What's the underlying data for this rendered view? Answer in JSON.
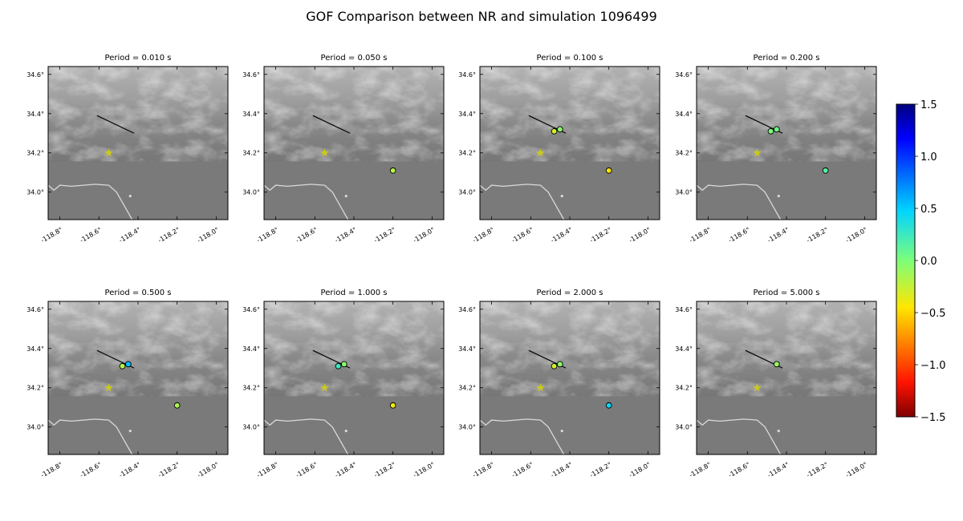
{
  "title": "GOF Comparison between NR and simulation 1096499",
  "colors": {
    "terrain_base": "#7a7a7a",
    "fault_line": "#000000",
    "epicenter_star": "#c9c91a",
    "coastline": "#d9d9d9"
  },
  "icons": {
    "epicenter": "star-icon",
    "station": "circle-marker"
  },
  "chart_data": {
    "type": "scatter",
    "subtype": "small-multiple maps",
    "x_ticks": [
      "-118.8°",
      "-118.6°",
      "-118.4°",
      "-118.2°",
      "-118.0°"
    ],
    "y_ticks": [
      "34.0°",
      "34.2°",
      "34.4°",
      "34.6°"
    ],
    "x_tick_values": [
      -118.8,
      -118.6,
      -118.4,
      -118.2,
      -118.0
    ],
    "y_tick_values": [
      34.0,
      34.2,
      34.4,
      34.6
    ],
    "xlim": [
      -118.86,
      -117.94
    ],
    "ylim": [
      33.86,
      34.64
    ],
    "epicenter": {
      "lon": -118.55,
      "lat": 34.2
    },
    "fault_trace": [
      {
        "lon": -118.61,
        "lat": 34.39
      },
      {
        "lon": -118.42,
        "lat": 34.3
      }
    ],
    "colorbar": {
      "ticks": [
        "1.5",
        "1.0",
        "0.5",
        "0.0",
        "−0.5",
        "−1.0",
        "−1.5"
      ],
      "range": [
        -1.5,
        1.5
      ],
      "colormap": "jet (reversed)"
    },
    "panels": [
      {
        "title": "Period = 0.010 s",
        "stations": []
      },
      {
        "title": "Period = 0.050 s",
        "stations": [
          {
            "lon": -118.2,
            "lat": 34.11,
            "value": -0.2
          }
        ]
      },
      {
        "title": "Period = 0.100 s",
        "stations": [
          {
            "lon": -118.48,
            "lat": 34.31,
            "value": -0.3
          },
          {
            "lon": -118.45,
            "lat": 34.32,
            "value": -0.05
          },
          {
            "lon": -118.2,
            "lat": 34.11,
            "value": -0.45
          }
        ]
      },
      {
        "title": "Period = 0.200 s",
        "stations": [
          {
            "lon": -118.48,
            "lat": 34.31,
            "value": 0.0
          },
          {
            "lon": -118.45,
            "lat": 34.32,
            "value": 0.05
          },
          {
            "lon": -118.2,
            "lat": 34.11,
            "value": 0.15
          }
        ]
      },
      {
        "title": "Period = 0.500 s",
        "stations": [
          {
            "lon": -118.48,
            "lat": 34.31,
            "value": -0.2
          },
          {
            "lon": -118.45,
            "lat": 34.32,
            "value": 0.55
          },
          {
            "lon": -118.2,
            "lat": 34.11,
            "value": -0.15
          }
        ]
      },
      {
        "title": "Period = 1.000 s",
        "stations": [
          {
            "lon": -118.48,
            "lat": 34.31,
            "value": 0.25
          },
          {
            "lon": -118.45,
            "lat": 34.32,
            "value": -0.05
          },
          {
            "lon": -118.2,
            "lat": 34.11,
            "value": -0.4
          }
        ]
      },
      {
        "title": "Period = 2.000 s",
        "stations": [
          {
            "lon": -118.48,
            "lat": 34.31,
            "value": -0.3
          },
          {
            "lon": -118.45,
            "lat": 34.32,
            "value": -0.05
          },
          {
            "lon": -118.2,
            "lat": 34.11,
            "value": 0.45
          }
        ]
      },
      {
        "title": "Period = 5.000 s",
        "stations": [
          {
            "lon": -118.45,
            "lat": 34.32,
            "value": -0.1
          }
        ]
      }
    ]
  }
}
